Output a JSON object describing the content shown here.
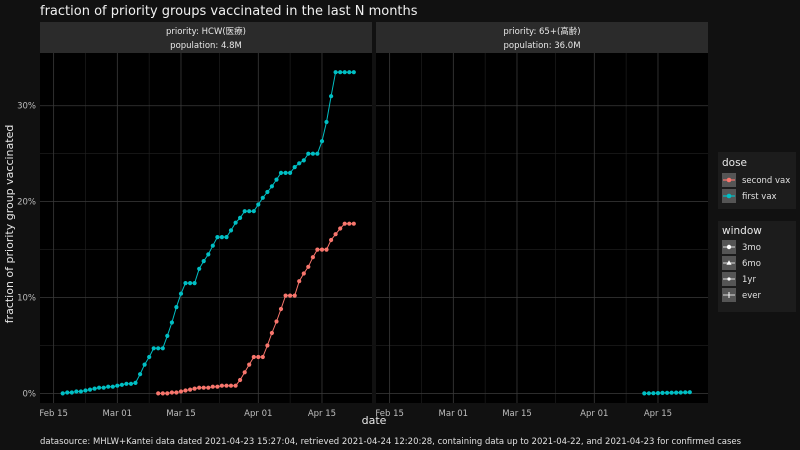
{
  "chart_data": {
    "type": "line",
    "title": "fraction of priority groups vaccinated in the last N months",
    "xlabel": "date",
    "ylabel": "fraction of priority group vaccinated",
    "x_ticks": [
      "Feb 15",
      "Mar 01",
      "Mar 15",
      "Apr 01",
      "Apr 15"
    ],
    "xlim": [
      "2021-02-12",
      "2021-04-26"
    ],
    "y_ticks": [
      0,
      0.1,
      0.2,
      0.3
    ],
    "y_tick_labels": [
      "0%",
      "10%",
      "20%",
      "30%"
    ],
    "ylim": [
      -0.01,
      0.355
    ],
    "grid": true,
    "caption": "datasource: MHLW+Kantei data dated 2021-04-23 15:27:04, retrieved 2021-04-24 12:20:28, containing data up to 2021-04-22, and 2021-04-23 for confirmed cases",
    "legend": {
      "placement": "right",
      "dose": {
        "title": "dose",
        "items": [
          {
            "label": "second vax",
            "color": "#f8766d"
          },
          {
            "label": "first vax",
            "color": "#00bfc4"
          }
        ]
      },
      "window": {
        "title": "window",
        "items": [
          {
            "label": "3mo",
            "shape": "circle"
          },
          {
            "label": "6mo",
            "shape": "triangle"
          },
          {
            "label": "1yr",
            "shape": "circle-small"
          },
          {
            "label": "ever",
            "shape": "plus"
          }
        ]
      }
    },
    "panels": [
      {
        "strip": [
          "priority: HCW(医療)",
          "population: 4.8M"
        ],
        "series": [
          {
            "name": "first vax",
            "color": "#00bfc4",
            "x": [
              "2021-02-17",
              "2021-02-18",
              "2021-02-19",
              "2021-02-20",
              "2021-02-21",
              "2021-02-22",
              "2021-02-23",
              "2021-02-24",
              "2021-02-25",
              "2021-02-26",
              "2021-02-27",
              "2021-02-28",
              "2021-03-01",
              "2021-03-02",
              "2021-03-03",
              "2021-03-04",
              "2021-03-05",
              "2021-03-06",
              "2021-03-07",
              "2021-03-08",
              "2021-03-09",
              "2021-03-10",
              "2021-03-11",
              "2021-03-12",
              "2021-03-13",
              "2021-03-14",
              "2021-03-15",
              "2021-03-16",
              "2021-03-17",
              "2021-03-18",
              "2021-03-19",
              "2021-03-20",
              "2021-03-21",
              "2021-03-22",
              "2021-03-23",
              "2021-03-24",
              "2021-03-25",
              "2021-03-26",
              "2021-03-27",
              "2021-03-28",
              "2021-03-29",
              "2021-03-30",
              "2021-03-31",
              "2021-04-01",
              "2021-04-02",
              "2021-04-03",
              "2021-04-04",
              "2021-04-05",
              "2021-04-06",
              "2021-04-07",
              "2021-04-08",
              "2021-04-09",
              "2021-04-10",
              "2021-04-11",
              "2021-04-12",
              "2021-04-13",
              "2021-04-14",
              "2021-04-15",
              "2021-04-16",
              "2021-04-17",
              "2021-04-18",
              "2021-04-19",
              "2021-04-20",
              "2021-04-21",
              "2021-04-22"
            ],
            "values": [
              0.0,
              0.001,
              0.001,
              0.002,
              0.002,
              0.003,
              0.004,
              0.005,
              0.006,
              0.006,
              0.007,
              0.007,
              0.008,
              0.009,
              0.01,
              0.01,
              0.011,
              0.02,
              0.03,
              0.038,
              0.047,
              0.047,
              0.047,
              0.06,
              0.074,
              0.09,
              0.104,
              0.115,
              0.115,
              0.115,
              0.13,
              0.138,
              0.145,
              0.154,
              0.163,
              0.163,
              0.163,
              0.17,
              0.178,
              0.183,
              0.19,
              0.19,
              0.19,
              0.197,
              0.204,
              0.21,
              0.216,
              0.223,
              0.23,
              0.23,
              0.23,
              0.236,
              0.24,
              0.243,
              0.25,
              0.25,
              0.25,
              0.263,
              0.283,
              0.31,
              0.335,
              0.335,
              0.335,
              0.335,
              0.335
            ]
          },
          {
            "name": "second vax",
            "color": "#f8766d",
            "x": [
              "2021-03-10",
              "2021-03-11",
              "2021-03-12",
              "2021-03-13",
              "2021-03-14",
              "2021-03-15",
              "2021-03-16",
              "2021-03-17",
              "2021-03-18",
              "2021-03-19",
              "2021-03-20",
              "2021-03-21",
              "2021-03-22",
              "2021-03-23",
              "2021-03-24",
              "2021-03-25",
              "2021-03-26",
              "2021-03-27",
              "2021-03-28",
              "2021-03-29",
              "2021-03-30",
              "2021-03-31",
              "2021-04-01",
              "2021-04-02",
              "2021-04-03",
              "2021-04-04",
              "2021-04-05",
              "2021-04-06",
              "2021-04-07",
              "2021-04-08",
              "2021-04-09",
              "2021-04-10",
              "2021-04-11",
              "2021-04-12",
              "2021-04-13",
              "2021-04-14",
              "2021-04-15",
              "2021-04-16",
              "2021-04-17",
              "2021-04-18",
              "2021-04-19",
              "2021-04-20",
              "2021-04-21",
              "2021-04-22"
            ],
            "values": [
              0.0,
              0.0,
              0.0,
              0.001,
              0.001,
              0.002,
              0.003,
              0.004,
              0.005,
              0.006,
              0.006,
              0.006,
              0.007,
              0.007,
              0.008,
              0.008,
              0.008,
              0.008,
              0.014,
              0.022,
              0.03,
              0.038,
              0.038,
              0.038,
              0.05,
              0.063,
              0.075,
              0.088,
              0.102,
              0.102,
              0.102,
              0.117,
              0.125,
              0.132,
              0.142,
              0.15,
              0.15,
              0.15,
              0.16,
              0.166,
              0.172,
              0.177,
              0.177,
              0.177
            ]
          }
        ]
      },
      {
        "strip": [
          "priority: 65+(高齢)",
          "population: 36.0M"
        ],
        "series": [
          {
            "name": "first vax",
            "color": "#00bfc4",
            "x": [
              "2021-04-12",
              "2021-04-13",
              "2021-04-14",
              "2021-04-15",
              "2021-04-16",
              "2021-04-17",
              "2021-04-18",
              "2021-04-19",
              "2021-04-20",
              "2021-04-21",
              "2021-04-22"
            ],
            "values": [
              0.0,
              0.0001,
              0.0002,
              0.0003,
              0.0005,
              0.0006,
              0.0007,
              0.0008,
              0.001,
              0.0012,
              0.0013
            ]
          },
          {
            "name": "second vax",
            "color": "#f8766d",
            "x": [],
            "values": []
          }
        ]
      }
    ]
  }
}
